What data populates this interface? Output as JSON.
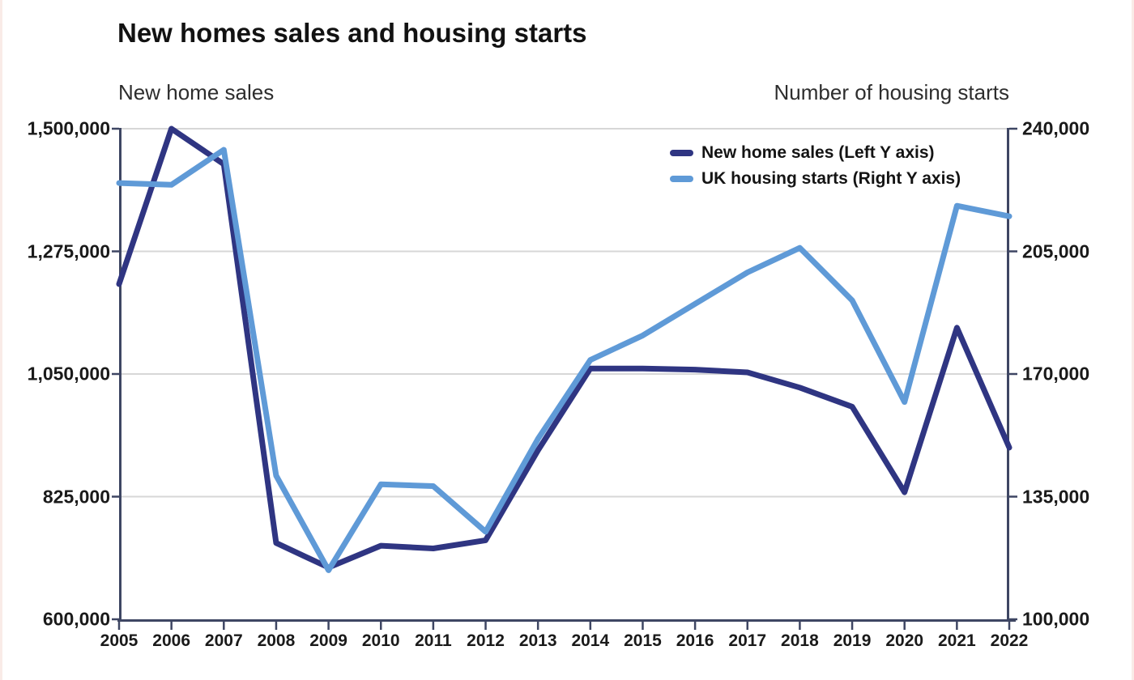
{
  "title": "New homes sales and housing starts",
  "left_axis": {
    "title": "New home sales",
    "ticks": [
      "1,500,000",
      "1,275,000",
      "1,050,000",
      "825,000",
      "600,000"
    ]
  },
  "right_axis": {
    "title": "Number of housing starts",
    "ticks": [
      "240,000",
      "205,000",
      "170,000",
      "135,000",
      "100,000"
    ]
  },
  "legend": [
    {
      "label": "New home sales (Left Y axis)",
      "color": "#2f3582"
    },
    {
      "label": "UK housing starts (Right Y axis)",
      "color": "#5f9ad7"
    }
  ],
  "colors": {
    "series_navy": "#2f3582",
    "series_blue": "#5f9ad7",
    "gridline": "#d7d7d7",
    "axis_line": "#3e4663",
    "text": "#1a1a1a"
  },
  "chart_data": {
    "type": "line",
    "x": [
      "2005",
      "2006",
      "2007",
      "2008",
      "2009",
      "2010",
      "2011",
      "2012",
      "2013",
      "2014",
      "2015",
      "2016",
      "2017",
      "2018",
      "2019",
      "2020",
      "2021",
      "2022"
    ],
    "series": [
      {
        "name": "New home sales (Left Y axis)",
        "axis": "left",
        "color": "#2f3582",
        "values": [
          1215000,
          1500000,
          1435000,
          740000,
          695000,
          735000,
          730000,
          745000,
          910000,
          1060000,
          1060000,
          1058000,
          1053000,
          1025000,
          990000,
          833000,
          1135000,
          915000
        ]
      },
      {
        "name": "UK housing starts (Right Y axis)",
        "axis": "right",
        "color": "#5f9ad7",
        "values": [
          224500,
          224000,
          234000,
          141000,
          114000,
          138500,
          138000,
          125000,
          151500,
          174000,
          181000,
          190000,
          199000,
          206000,
          191000,
          162000,
          218000,
          215000
        ]
      }
    ],
    "left_ylim": [
      600000,
      1500000
    ],
    "left_tick_values": [
      1500000,
      1275000,
      1050000,
      825000,
      600000
    ],
    "right_ylim": [
      100000,
      240000
    ],
    "right_tick_values": [
      240000,
      205000,
      170000,
      135000,
      100000
    ],
    "grid": true,
    "legend_position": "top-right"
  }
}
